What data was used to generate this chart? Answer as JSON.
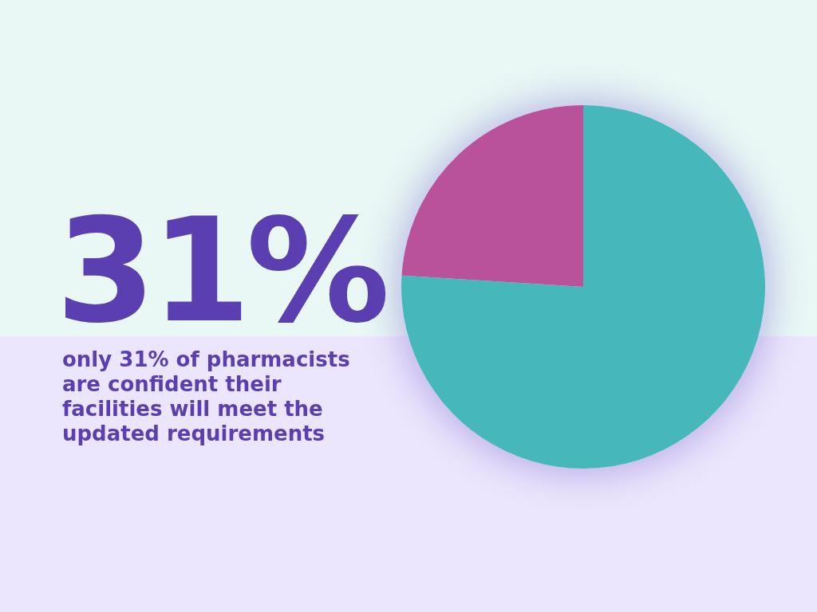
{
  "chart_data": {
    "type": "pie",
    "title": "31%",
    "subtitle": "only 31% of pharmacists are confident their facilities will meet the updated requirements",
    "categories": [
      null,
      null
    ],
    "values": [
      76,
      24
    ],
    "colors": [
      "#46b8bc",
      "#b9529a"
    ]
  }
}
